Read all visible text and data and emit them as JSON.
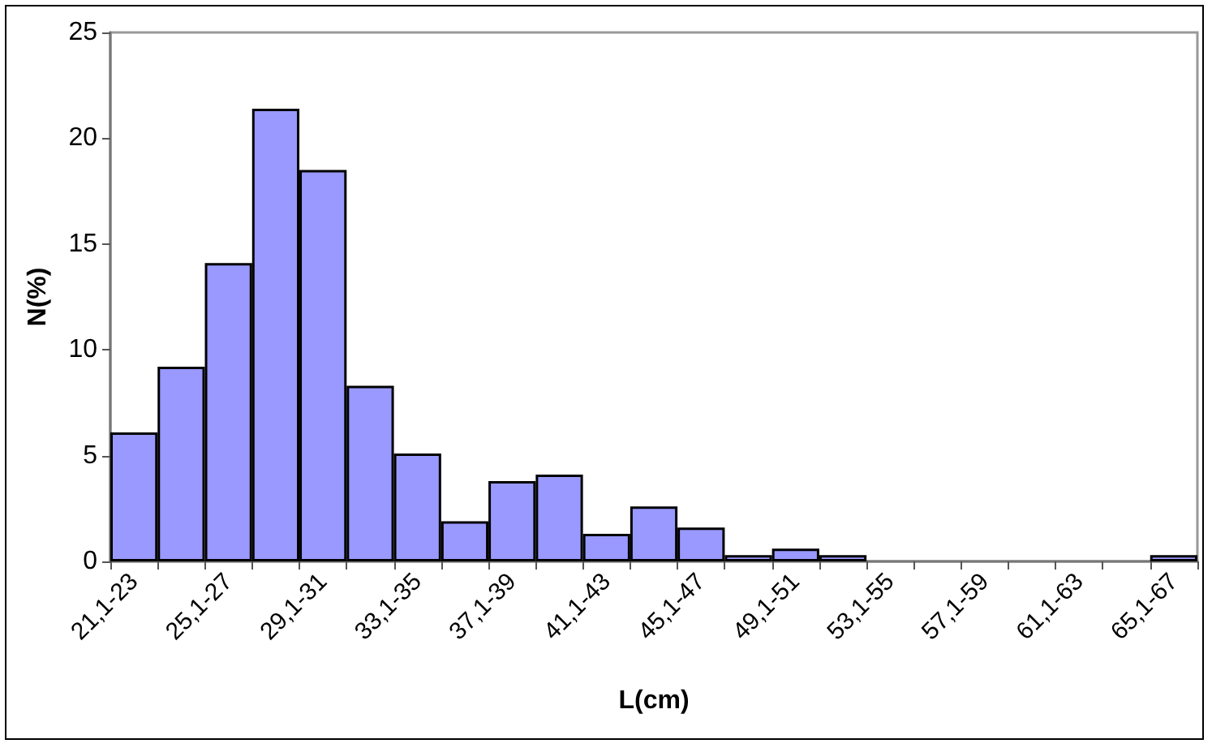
{
  "chart_data": {
    "type": "bar",
    "xlabel": "L(cm)",
    "ylabel": "N(%)",
    "categories": [
      "21,1-23",
      null,
      "25,1-27",
      null,
      "29,1-31",
      null,
      "33,1-35",
      null,
      "37,1-39",
      null,
      "41,1-43",
      null,
      "45,1-47",
      null,
      "49,1-51",
      null,
      "53,1-55",
      null,
      "57,1-59",
      null,
      "61,1-63",
      null,
      "65,1-67"
    ],
    "values": [
      6.1,
      9.2,
      14.1,
      21.4,
      18.5,
      8.3,
      5.1,
      1.9,
      3.8,
      4.1,
      1.3,
      2.6,
      1.6,
      0.3,
      0.6,
      0.3,
      0,
      0,
      0,
      0,
      0,
      0,
      0.3
    ],
    "color": "#9999ff",
    "ylim": [
      0,
      25
    ],
    "yticks": [
      0,
      5,
      10,
      15,
      20,
      25
    ],
    "grid": false
  }
}
